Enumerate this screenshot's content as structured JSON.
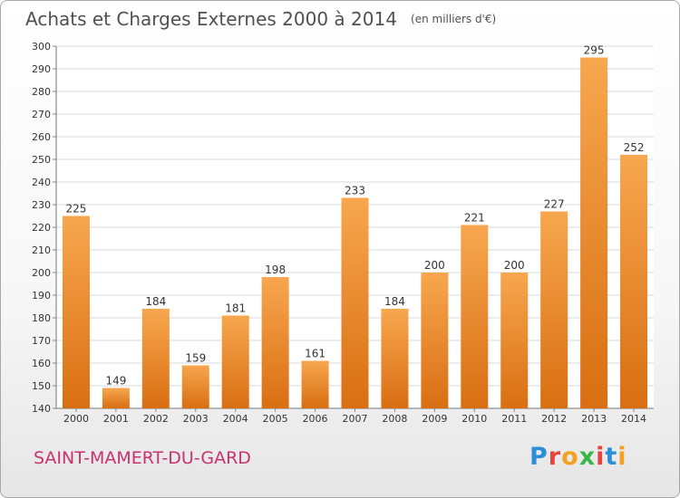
{
  "header": {
    "title": "Achats et Charges Externes 2000 à 2014",
    "unit": "(en milliers d'€)"
  },
  "footer": {
    "commune": "SAINT-MAMERT-DU-GARD",
    "logo_text": "Proxiti"
  },
  "colors": {
    "bar_light": "#f7a74f",
    "bar_dark": "#d96e12",
    "grid": "#d8d8d8",
    "text": "#333333",
    "commune": "#c8336a"
  },
  "chart_data": {
    "type": "bar",
    "title": "Achats et Charges Externes 2000 à 2014",
    "subtitle": "(en milliers d'€)",
    "categories": [
      "2000",
      "2001",
      "2002",
      "2003",
      "2004",
      "2005",
      "2006",
      "2007",
      "2008",
      "2009",
      "2010",
      "2011",
      "2012",
      "2013",
      "2014"
    ],
    "values": [
      225,
      149,
      184,
      159,
      181,
      198,
      161,
      233,
      184,
      200,
      221,
      200,
      227,
      295,
      252
    ],
    "ylim": [
      140,
      300
    ],
    "yticks": [
      140,
      150,
      160,
      170,
      180,
      190,
      200,
      210,
      220,
      230,
      240,
      250,
      260,
      270,
      280,
      290,
      300
    ],
    "grid": true,
    "data_labels": true
  }
}
